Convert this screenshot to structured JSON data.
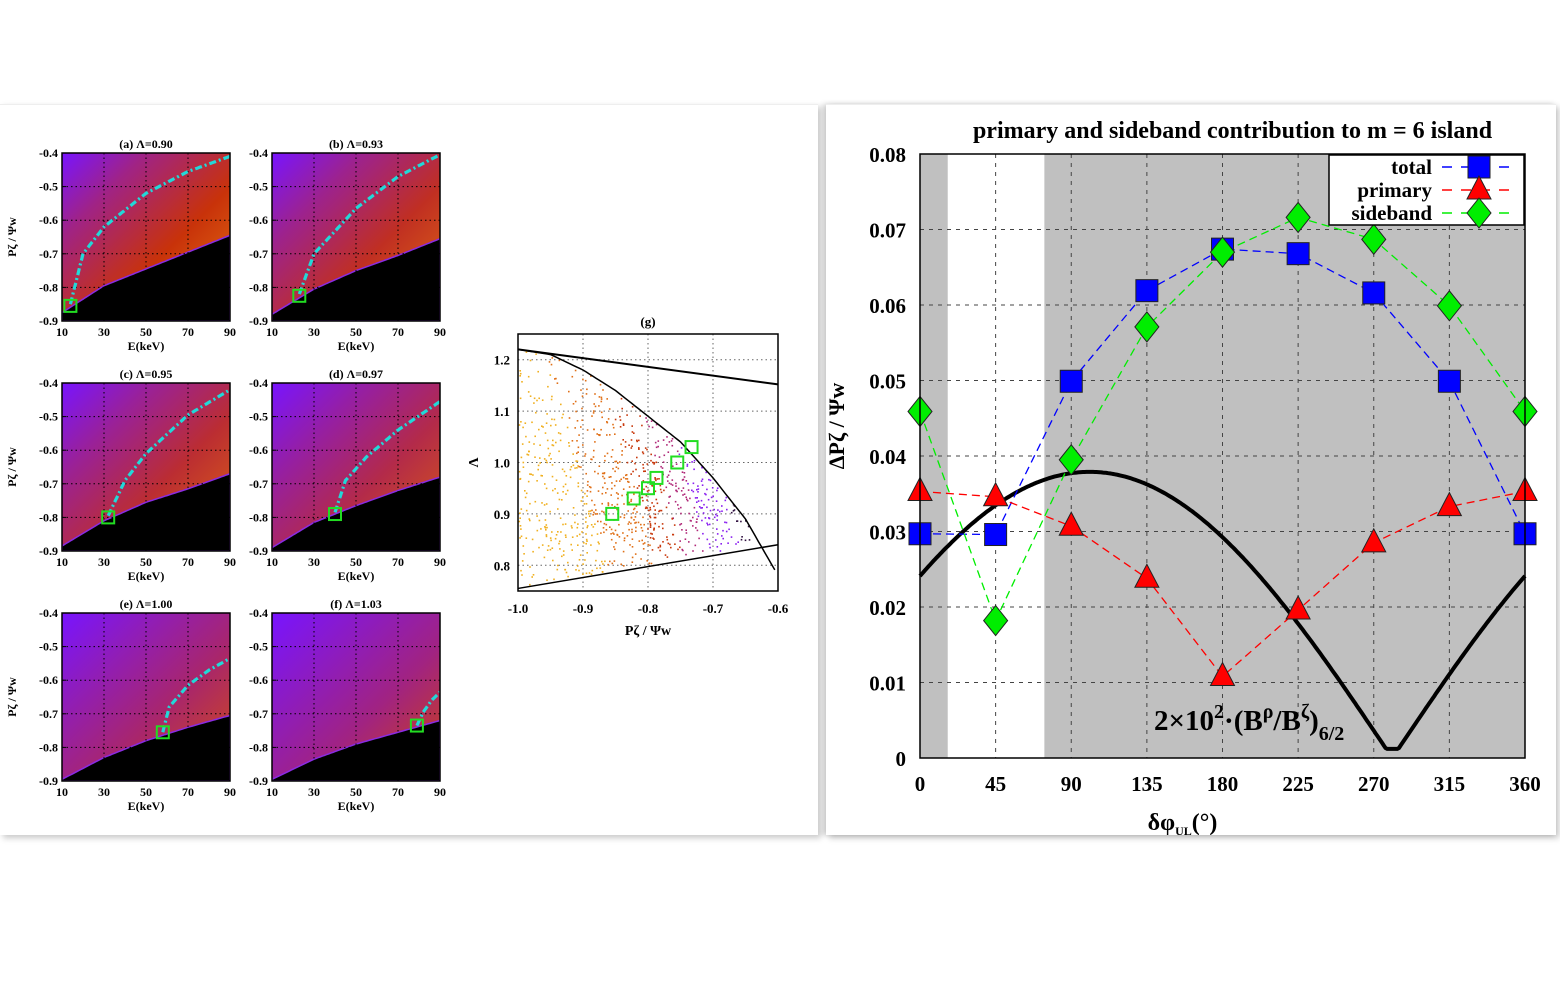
{
  "chart_data": [
    {
      "id": "a",
      "type": "heatmap",
      "title": "(a) Λ=0.90",
      "lambda": 0.9,
      "xlabel": "E(keV)",
      "ylabel": "Pζ / Ψw",
      "xlim": [
        10,
        90
      ],
      "ylim": [
        -0.9,
        -0.4
      ],
      "xticks": [
        "10",
        "30",
        "50",
        "70",
        "90"
      ],
      "yticks": [
        "-0.4",
        "-0.5",
        "-0.6",
        "-0.7",
        "-0.8",
        "-0.9"
      ],
      "boundary": [
        [
          10,
          -0.875
        ],
        [
          30,
          -0.795
        ],
        [
          50,
          -0.745
        ],
        [
          70,
          -0.695
        ],
        [
          90,
          -0.645
        ]
      ],
      "curve": [
        [
          14,
          -0.85
        ],
        [
          20,
          -0.7
        ],
        [
          30,
          -0.62
        ],
        [
          50,
          -0.52
        ],
        [
          70,
          -0.455
        ],
        [
          90,
          -0.41
        ]
      ],
      "marker": [
        14,
        -0.855
      ],
      "warmth": 1.0
    },
    {
      "id": "b",
      "type": "heatmap",
      "title": "(b) Λ=0.93",
      "lambda": 0.93,
      "xlabel": "E(keV)",
      "ylabel": "",
      "xlim": [
        10,
        90
      ],
      "ylim": [
        -0.9,
        -0.4
      ],
      "xticks": [
        "10",
        "30",
        "50",
        "70",
        "90"
      ],
      "yticks": [
        "-0.4",
        "-0.5",
        "-0.6",
        "-0.7",
        "-0.8",
        "-0.9"
      ],
      "boundary": [
        [
          10,
          -0.88
        ],
        [
          30,
          -0.805
        ],
        [
          50,
          -0.75
        ],
        [
          70,
          -0.705
        ],
        [
          90,
          -0.655
        ]
      ],
      "curve": [
        [
          23,
          -0.82
        ],
        [
          30,
          -0.7
        ],
        [
          50,
          -0.565
        ],
        [
          70,
          -0.47
        ],
        [
          90,
          -0.405
        ]
      ],
      "marker": [
        23,
        -0.825
      ],
      "warmth": 0.85
    },
    {
      "id": "c",
      "type": "heatmap",
      "title": "(c) Λ=0.95",
      "lambda": 0.95,
      "xlabel": "E(keV)",
      "ylabel": "Pζ / Ψw",
      "xlim": [
        10,
        90
      ],
      "ylim": [
        -0.9,
        -0.4
      ],
      "xticks": [
        "10",
        "30",
        "50",
        "70",
        "90"
      ],
      "yticks": [
        "-0.4",
        "-0.5",
        "-0.6",
        "-0.7",
        "-0.8",
        "-0.9"
      ],
      "boundary": [
        [
          10,
          -0.885
        ],
        [
          30,
          -0.81
        ],
        [
          50,
          -0.755
        ],
        [
          70,
          -0.715
        ],
        [
          90,
          -0.67
        ]
      ],
      "curve": [
        [
          32,
          -0.795
        ],
        [
          40,
          -0.69
        ],
        [
          50,
          -0.61
        ],
        [
          70,
          -0.495
        ],
        [
          90,
          -0.42
        ]
      ],
      "marker": [
        32,
        -0.8
      ],
      "warmth": 0.75
    },
    {
      "id": "d",
      "type": "heatmap",
      "title": "(d) Λ=0.97",
      "lambda": 0.97,
      "xlabel": "E(keV)",
      "ylabel": "",
      "xlim": [
        10,
        90
      ],
      "ylim": [
        -0.9,
        -0.4
      ],
      "xticks": [
        "10",
        "30",
        "50",
        "70",
        "90"
      ],
      "yticks": [
        "-0.4",
        "-0.5",
        "-0.6",
        "-0.7",
        "-0.8",
        "-0.9"
      ],
      "boundary": [
        [
          10,
          -0.89
        ],
        [
          30,
          -0.815
        ],
        [
          50,
          -0.765
        ],
        [
          70,
          -0.72
        ],
        [
          90,
          -0.68
        ]
      ],
      "curve": [
        [
          40,
          -0.785
        ],
        [
          45,
          -0.69
        ],
        [
          55,
          -0.62
        ],
        [
          70,
          -0.54
        ],
        [
          90,
          -0.455
        ]
      ],
      "marker": [
        40,
        -0.79
      ],
      "warmth": 0.6
    },
    {
      "id": "e",
      "type": "heatmap",
      "title": "(e) Λ=1.00",
      "lambda": 1.0,
      "xlabel": "E(keV)",
      "ylabel": "Pζ / Ψw",
      "xlim": [
        10,
        90
      ],
      "ylim": [
        -0.9,
        -0.4
      ],
      "xticks": [
        "10",
        "30",
        "50",
        "70",
        "90"
      ],
      "yticks": [
        "-0.4",
        "-0.5",
        "-0.6",
        "-0.7",
        "-0.8",
        "-0.9"
      ],
      "boundary": [
        [
          10,
          -0.895
        ],
        [
          30,
          -0.83
        ],
        [
          50,
          -0.78
        ],
        [
          70,
          -0.74
        ],
        [
          90,
          -0.705
        ]
      ],
      "curve": [
        [
          58,
          -0.755
        ],
        [
          61,
          -0.68
        ],
        [
          70,
          -0.615
        ],
        [
          80,
          -0.57
        ],
        [
          90,
          -0.535
        ]
      ],
      "marker": [
        58,
        -0.755
      ],
      "warmth": 0.4
    },
    {
      "id": "f",
      "type": "heatmap",
      "title": "(f) Λ=1.03",
      "lambda": 1.03,
      "xlabel": "E(keV)",
      "ylabel": "",
      "xlim": [
        10,
        90
      ],
      "ylim": [
        -0.9,
        -0.4
      ],
      "xticks": [
        "10",
        "30",
        "50",
        "70",
        "90"
      ],
      "yticks": [
        "-0.4",
        "-0.5",
        "-0.6",
        "-0.7",
        "-0.8",
        "-0.9"
      ],
      "boundary": [
        [
          10,
          -0.895
        ],
        [
          30,
          -0.835
        ],
        [
          50,
          -0.79
        ],
        [
          70,
          -0.755
        ],
        [
          90,
          -0.72
        ]
      ],
      "curve": [
        [
          79,
          -0.735
        ],
        [
          82,
          -0.695
        ],
        [
          86,
          -0.66
        ],
        [
          90,
          -0.635
        ]
      ],
      "marker": [
        79,
        -0.735
      ],
      "warmth": 0.25
    },
    {
      "id": "g",
      "type": "scatter",
      "title": "(g)",
      "xlabel": "Pζ / Ψw",
      "ylabel": "Λ",
      "xlim": [
        -1.0,
        -0.6
      ],
      "ylim": [
        0.75,
        1.25
      ],
      "xticks": [
        "-1.0",
        "-0.9",
        "-0.8",
        "-0.7",
        "-0.6"
      ],
      "yticks": [
        "0.8",
        "0.9",
        "1.0",
        "1.1",
        "1.2"
      ],
      "upper_line": [
        [
          -1.0,
          1.22
        ],
        [
          -0.6,
          1.152
        ]
      ],
      "lower_line": [
        [
          -1.0,
          0.755
        ],
        [
          -0.6,
          0.84
        ]
      ],
      "boundary_curve": [
        [
          -1.0,
          1.22
        ],
        [
          -0.95,
          1.21
        ],
        [
          -0.9,
          1.18
        ],
        [
          -0.85,
          1.14
        ],
        [
          -0.8,
          1.09
        ],
        [
          -0.75,
          1.04
        ],
        [
          -0.7,
          0.97
        ],
        [
          -0.65,
          0.89
        ],
        [
          -0.6,
          0.78
        ]
      ],
      "markers": [
        [
          -0.855,
          0.9
        ],
        [
          -0.822,
          0.93
        ],
        [
          -0.8,
          0.95
        ],
        [
          -0.787,
          0.97
        ],
        [
          -0.755,
          1.0
        ],
        [
          -0.733,
          1.03
        ]
      ]
    },
    {
      "id": "main",
      "type": "line",
      "title": "primary and sideband contribution to m = 6 island",
      "xlabel": "δφUL(°)",
      "xlabel_main": "δφ",
      "xlabel_sub": "UL",
      "xlabel_tail": "(°)",
      "ylabel": "ΔPζ / Ψw",
      "xlim": [
        0,
        360
      ],
      "ylim": [
        0,
        0.08
      ],
      "grid": true,
      "x": [
        0,
        45,
        90,
        135,
        180,
        225,
        270,
        315,
        360
      ],
      "xticks": [
        "0",
        "45",
        "90",
        "135",
        "180",
        "225",
        "270",
        "315",
        "360"
      ],
      "yticks": [
        "0",
        "0.01",
        "0.02",
        "0.03",
        "0.04",
        "0.05",
        "0.06",
        "0.07",
        "0.08"
      ],
      "legend_position": "top-right",
      "shaded_regions": [
        [
          0,
          16.5
        ],
        [
          74,
          360
        ]
      ],
      "series": [
        {
          "name": "total",
          "color": "#0000ff",
          "marker": "square",
          "values": [
            0.0297,
            0.0296,
            0.0499,
            0.0619,
            0.0674,
            0.0668,
            0.0616,
            0.0499,
            0.0297
          ]
        },
        {
          "name": "primary",
          "color": "#ff0000",
          "marker": "triangle",
          "values": [
            0.0353,
            0.0346,
            0.0307,
            0.0238,
            0.0108,
            0.0196,
            0.0285,
            0.0333,
            0.0353
          ]
        },
        {
          "name": "sideband",
          "color": "#00ee00",
          "marker": "diamond",
          "values": [
            0.0459,
            0.0182,
            0.0395,
            0.0571,
            0.067,
            0.0716,
            0.0687,
            0.0599,
            0.0459
          ]
        }
      ],
      "curve": {
        "label_main": "2×10",
        "label_exp": "2",
        "label_mid": "·(B",
        "label_rho": "ρ",
        "label_slash": "/B",
        "label_zeta": "ζ",
        "label_close": ")",
        "label_sub": "6/2",
        "amplitude": 0.0379,
        "phase_peak_deg": 101,
        "color": "#000000"
      }
    }
  ]
}
